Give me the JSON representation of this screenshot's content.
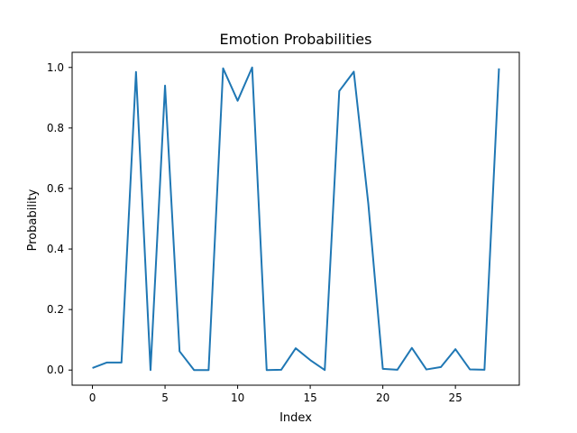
{
  "chart_data": {
    "type": "line",
    "title": "Emotion Probabilities",
    "xlabel": "Index",
    "ylabel": "Probability",
    "xlim": [
      -1.4,
      29.4
    ],
    "ylim": [
      -0.05,
      1.05
    ],
    "xticks": [
      0,
      5,
      10,
      15,
      20,
      25
    ],
    "xtick_labels": [
      "0",
      "5",
      "10",
      "15",
      "20",
      "25"
    ],
    "yticks": [
      0.0,
      0.2,
      0.4,
      0.6,
      0.8,
      1.0
    ],
    "ytick_labels": [
      "0.0",
      "0.2",
      "0.4",
      "0.6",
      "0.8",
      "1.0"
    ],
    "grid": false,
    "legend": false,
    "series": [
      {
        "color": "#1f77b4",
        "x": [
          0,
          1,
          2,
          3,
          4,
          5,
          6,
          7,
          8,
          9,
          10,
          11,
          12,
          13,
          14,
          15,
          16,
          17,
          18,
          19,
          20,
          21,
          22,
          23,
          24,
          25,
          26,
          27,
          28
        ],
        "y": [
          0.007,
          0.025,
          0.025,
          0.985,
          0.0,
          0.94,
          0.062,
          0.0,
          0.0,
          0.997,
          0.89,
          1.0,
          0.0,
          0.001,
          0.072,
          0.033,
          0.0,
          0.922,
          0.986,
          0.55,
          0.004,
          0.001,
          0.073,
          0.002,
          0.01,
          0.069,
          0.002,
          0.001,
          0.997
        ]
      }
    ]
  }
}
